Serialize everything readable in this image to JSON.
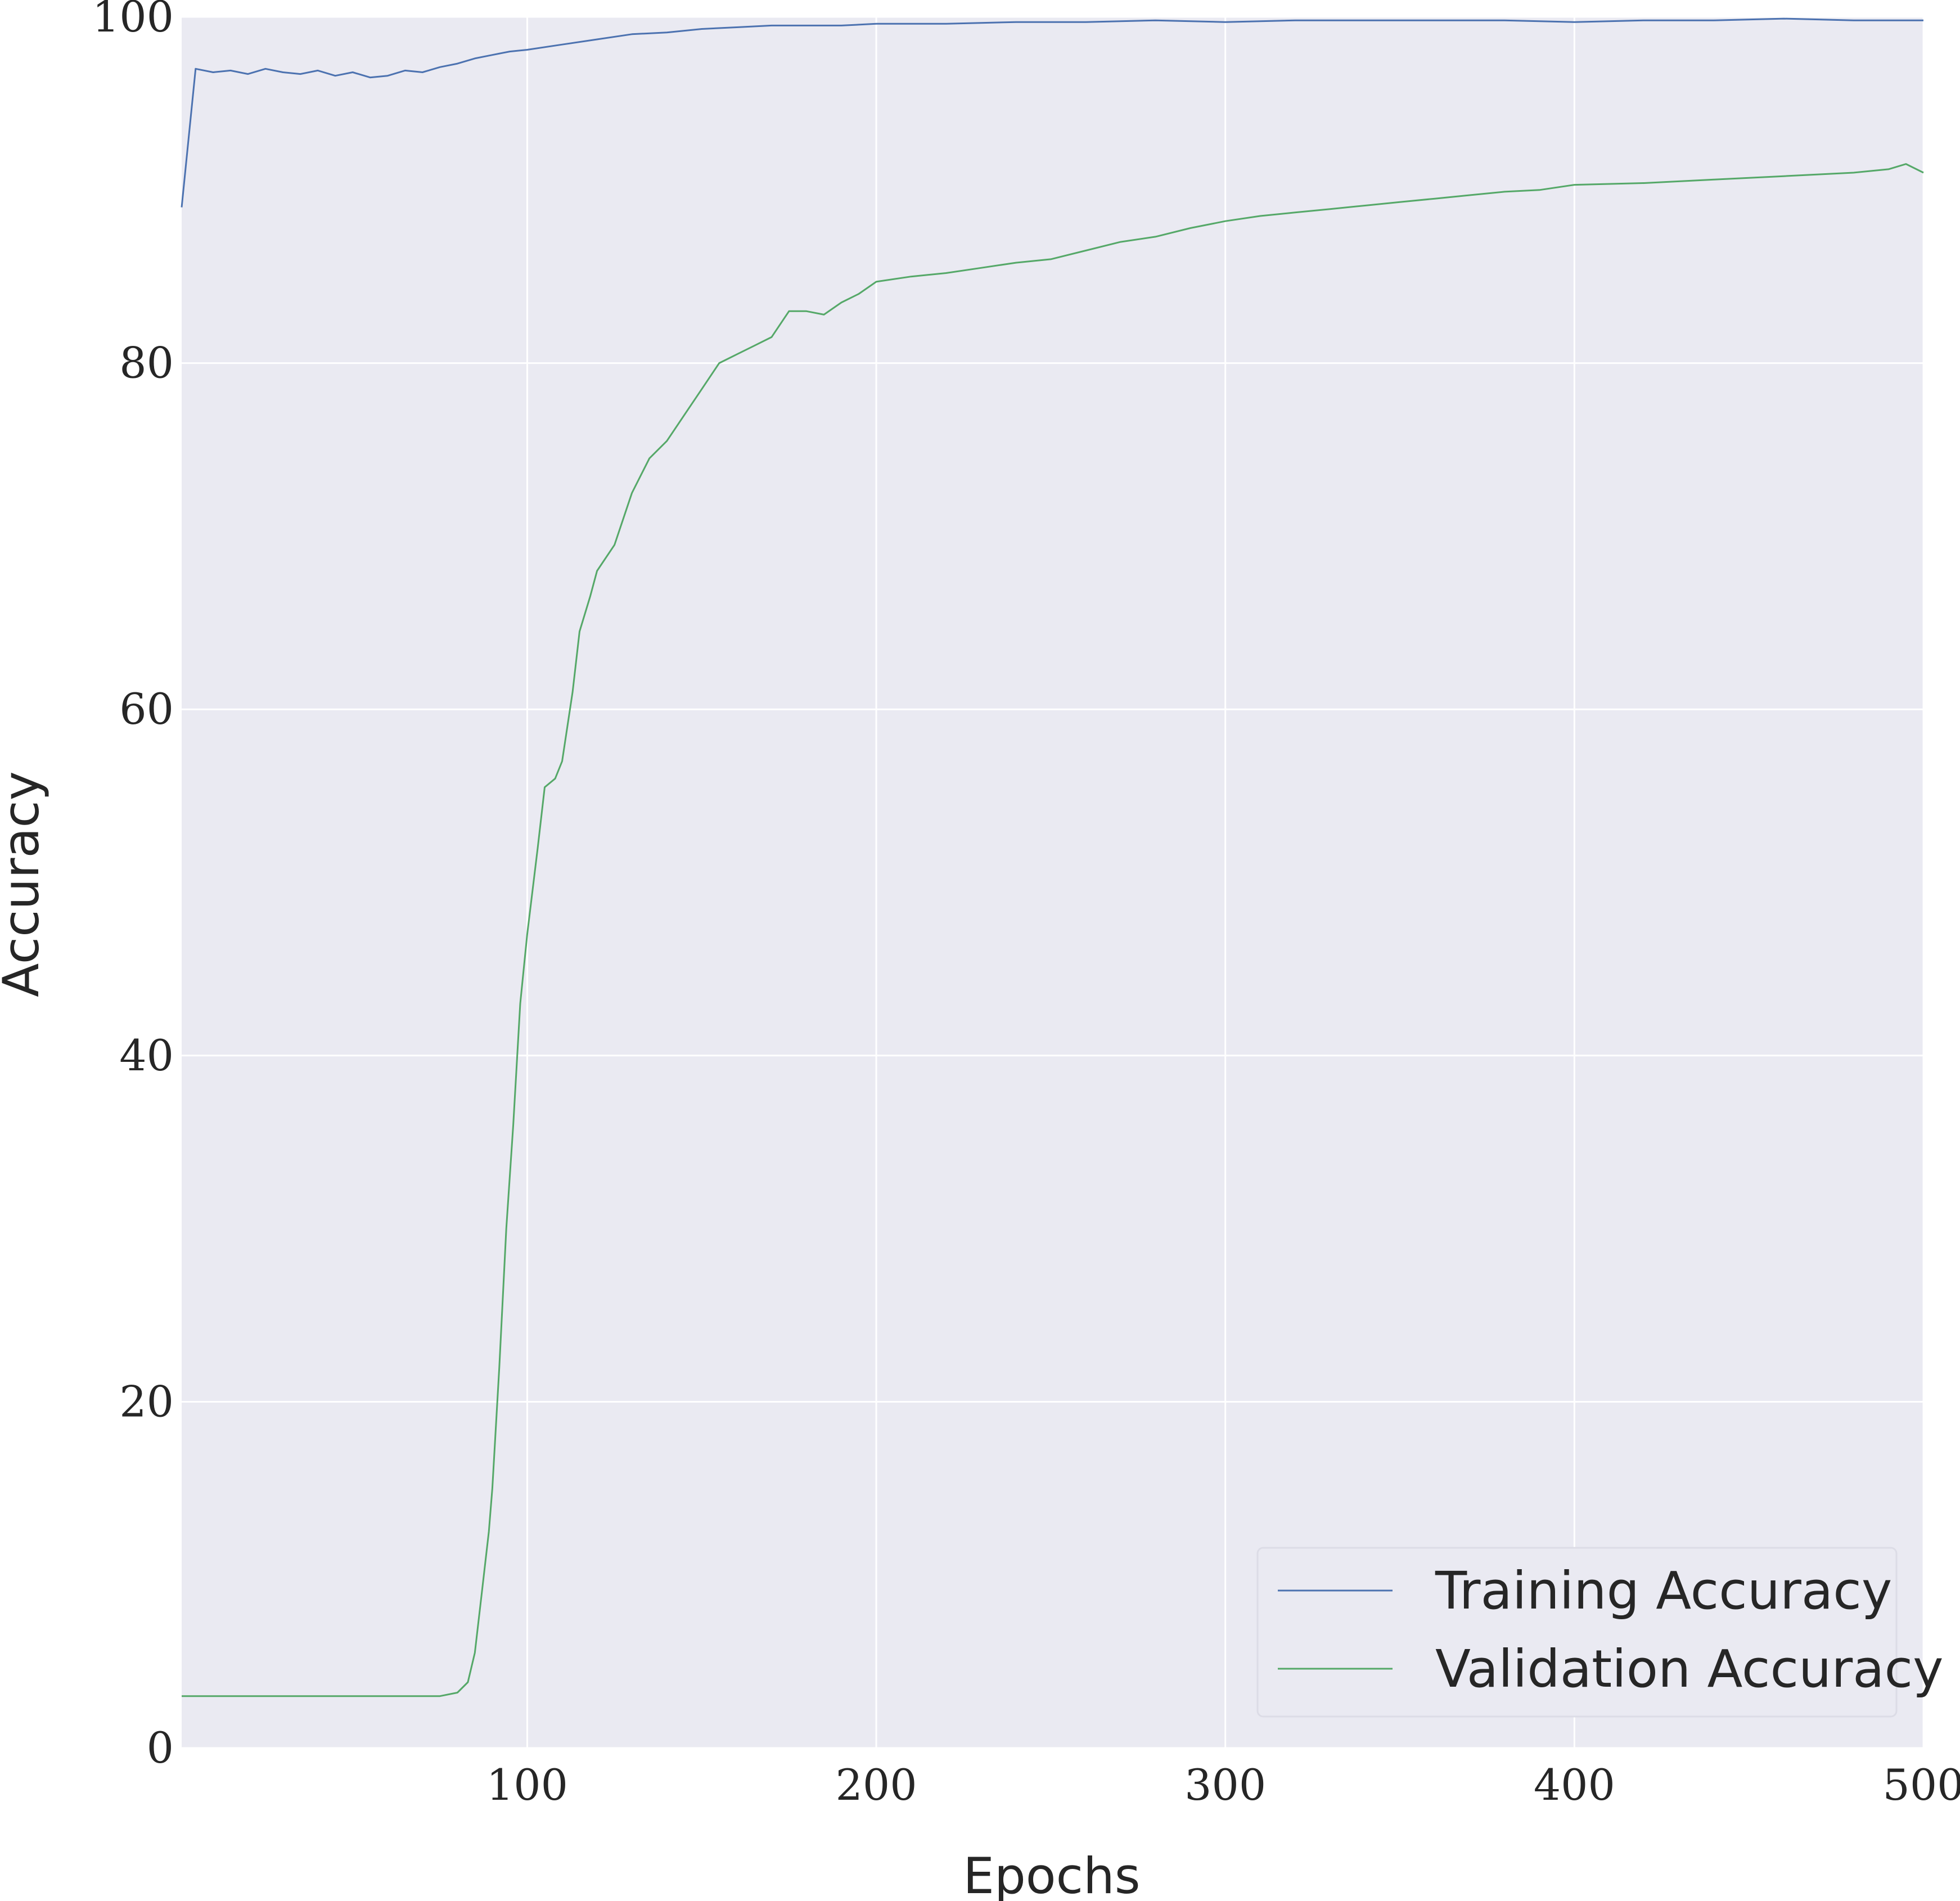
{
  "chart_data": {
    "type": "line",
    "title": "",
    "xlabel": "Epochs",
    "ylabel": "Accuracy",
    "xlim": [
      1,
      500
    ],
    "ylim": [
      0,
      100
    ],
    "xticks": [
      100,
      200,
      300,
      400,
      500
    ],
    "yticks": [
      0,
      20,
      40,
      60,
      80,
      100
    ],
    "grid": true,
    "legend_position": "lower-right",
    "background_color": "#eaeaf2",
    "grid_color": "#ffffff",
    "series": [
      {
        "name": "Training Accuracy",
        "color": "#4c72b0",
        "x": [
          1,
          5,
          10,
          15,
          20,
          25,
          30,
          35,
          40,
          45,
          50,
          55,
          60,
          65,
          70,
          75,
          80,
          85,
          90,
          95,
          100,
          110,
          120,
          130,
          140,
          150,
          160,
          170,
          180,
          190,
          200,
          220,
          240,
          260,
          280,
          300,
          320,
          340,
          360,
          380,
          400,
          420,
          440,
          460,
          480,
          500
        ],
        "y": [
          89.0,
          97.0,
          96.8,
          96.9,
          96.7,
          97.0,
          96.8,
          96.7,
          96.9,
          96.6,
          96.8,
          96.5,
          96.6,
          96.9,
          96.8,
          97.1,
          97.3,
          97.6,
          97.8,
          98.0,
          98.1,
          98.4,
          98.7,
          99.0,
          99.1,
          99.3,
          99.4,
          99.5,
          99.5,
          99.5,
          99.6,
          99.6,
          99.7,
          99.7,
          99.8,
          99.7,
          99.8,
          99.8,
          99.8,
          99.8,
          99.7,
          99.8,
          99.8,
          99.9,
          99.8,
          99.8
        ]
      },
      {
        "name": "Validation Accuracy",
        "color": "#55a868",
        "x": [
          1,
          20,
          40,
          60,
          75,
          80,
          83,
          85,
          87,
          89,
          90,
          92,
          94,
          96,
          98,
          100,
          103,
          105,
          108,
          110,
          113,
          115,
          118,
          120,
          125,
          130,
          135,
          140,
          145,
          150,
          155,
          160,
          165,
          170,
          175,
          180,
          185,
          190,
          195,
          200,
          210,
          220,
          230,
          240,
          250,
          260,
          270,
          280,
          290,
          300,
          310,
          320,
          330,
          340,
          350,
          360,
          370,
          380,
          390,
          400,
          420,
          440,
          460,
          480,
          490,
          495,
          500
        ],
        "y": [
          3.0,
          3.0,
          3.0,
          3.0,
          3.0,
          3.2,
          3.8,
          5.5,
          9.0,
          12.5,
          15.0,
          22.0,
          30.0,
          36.0,
          43.0,
          47.0,
          52.0,
          55.5,
          56.0,
          57.0,
          61.0,
          64.5,
          66.5,
          68.0,
          69.5,
          72.5,
          74.5,
          75.5,
          77.0,
          78.5,
          80.0,
          80.5,
          81.0,
          81.5,
          83.0,
          83.0,
          82.8,
          83.5,
          84.0,
          84.7,
          85.0,
          85.2,
          85.5,
          85.8,
          86.0,
          86.5,
          87.0,
          87.3,
          87.8,
          88.2,
          88.5,
          88.7,
          88.9,
          89.1,
          89.3,
          89.5,
          89.7,
          89.9,
          90.0,
          90.3,
          90.4,
          90.6,
          90.8,
          91.0,
          91.2,
          91.5,
          91.0
        ]
      }
    ]
  }
}
